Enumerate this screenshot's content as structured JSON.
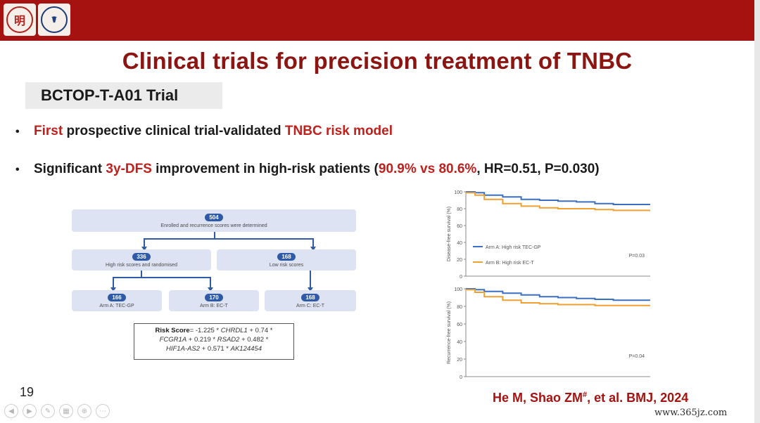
{
  "header": {
    "logo_left_text": "明",
    "logo_right_text": "☤"
  },
  "title": "Clinical trials for precision treatment of TNBC",
  "trial_name": "BCTOP-T-A01 Trial",
  "bullets": [
    {
      "parts": [
        {
          "text": "First",
          "red": true
        },
        {
          "text": " prospective clinical trial-validated ",
          "red": false
        },
        {
          "text": "TNBC risk model",
          "red": true
        }
      ]
    },
    {
      "parts": [
        {
          "text": "Significant ",
          "red": false
        },
        {
          "text": "3y-DFS",
          "red": true
        },
        {
          "text": " improvement in high-risk patients (",
          "red": false
        },
        {
          "text": "90.9% vs 80.6%",
          "red": true
        },
        {
          "text": ", HR=0.51, P=0.030)",
          "red": false
        }
      ]
    }
  ],
  "flowchart": {
    "enrolled": {
      "n": "504",
      "text": "Enrolled and recurrence scores were determined"
    },
    "high_risk": {
      "n": "336",
      "text": "High risk scores and randomised"
    },
    "low_risk": {
      "n": "168",
      "text": "Low risk scores"
    },
    "arm_a": {
      "n": "166",
      "text": "Arm A: TEC-GP"
    },
    "arm_b": {
      "n": "170",
      "text": "Arm B: EC-T"
    },
    "arm_c": {
      "n": "168",
      "text": "Arm C: EC-T"
    }
  },
  "formula": {
    "label": "Risk Score",
    "line1": "= -1.225 * ",
    "gene1": "CHRDL1",
    "line1b": " + 0.74 *",
    "gene2": "FCGR1A",
    "line2": " + 0.219 * ",
    "gene3": "RSAD2",
    "line2b": " + 0.482 *",
    "gene4": "HIF1A-AS2",
    "line3": " + 0.571 * ",
    "gene5": "AK124454"
  },
  "chart_data": [
    {
      "type": "line",
      "ylabel": "Disease-free survival (%)",
      "ylim": [
        0,
        100
      ],
      "yticks": [
        "100",
        "80",
        "60",
        "40",
        "20",
        "0"
      ],
      "annotation": "P=0.03",
      "series": [
        {
          "name": "Arm A: High risk TEC-GP",
          "color": "#3b6fc4",
          "x": [
            0,
            5,
            10,
            20,
            30,
            40,
            50,
            60,
            70,
            80,
            90,
            100
          ],
          "y": [
            100,
            99,
            96,
            94,
            91,
            90,
            89,
            88,
            86,
            85,
            85,
            85
          ]
        },
        {
          "name": "Arm B: High risk EC-T",
          "color": "#f0a030",
          "x": [
            0,
            5,
            10,
            20,
            30,
            40,
            50,
            60,
            70,
            80,
            90,
            100
          ],
          "y": [
            99,
            96,
            91,
            86,
            83,
            81,
            80,
            80,
            79,
            78,
            78,
            78
          ]
        }
      ]
    },
    {
      "type": "line",
      "ylabel": "Recurrence-free survival (%)",
      "ylim": [
        0,
        100
      ],
      "yticks": [
        "100",
        "80",
        "60",
        "40",
        "20",
        "0"
      ],
      "annotation": "P=0.04",
      "series": [
        {
          "name": "",
          "color": "#3b6fc4",
          "x": [
            0,
            5,
            10,
            20,
            30,
            40,
            50,
            60,
            70,
            80,
            90,
            100
          ],
          "y": [
            100,
            99,
            97,
            95,
            93,
            91,
            90,
            89,
            88,
            87,
            87,
            87
          ]
        },
        {
          "name": "",
          "color": "#f0a030",
          "x": [
            0,
            5,
            10,
            20,
            30,
            40,
            50,
            60,
            70,
            80,
            90,
            100
          ],
          "y": [
            99,
            96,
            91,
            87,
            84,
            83,
            82,
            82,
            81,
            81,
            81,
            81
          ]
        }
      ]
    }
  ],
  "page_number": "19",
  "citation": {
    "text": "He M, Shao ZM",
    "sup": "#",
    "rest": ", et al. BMJ, 2024"
  },
  "toolbar_icons": [
    "prev-icon",
    "next-icon",
    "pen-icon",
    "grid-icon",
    "zoom-icon",
    "more-icon"
  ],
  "toolbar_glyphs": [
    "◀",
    "▶",
    "✎",
    "▦",
    "⊕",
    "⋯"
  ],
  "watermark": "www.365jz.com"
}
